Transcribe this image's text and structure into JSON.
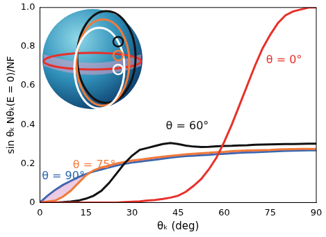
{
  "chart_data": {
    "type": "line",
    "x_label": "θₖ (deg)",
    "y_label": "sin θₖ Nθₖ(E = 0)/NF",
    "x": [
      0,
      2.5,
      5,
      7.5,
      10,
      12.5,
      15,
      17.5,
      20,
      22.5,
      25,
      27.5,
      30,
      32.5,
      35,
      37.5,
      40,
      42.5,
      45,
      47.5,
      50,
      52.5,
      55,
      57.5,
      60,
      62.5,
      65,
      67.5,
      70,
      72.5,
      75,
      77.5,
      80,
      82.5,
      85,
      87.5,
      90
    ],
    "series": [
      {
        "name": "θ = 0°",
        "color": "#e8302a",
        "values": [
          0,
          0,
          0,
          0,
          0,
          0,
          0,
          0,
          0,
          0,
          0,
          0.002,
          0.004,
          0.006,
          0.01,
          0.013,
          0.018,
          0.025,
          0.035,
          0.055,
          0.085,
          0.12,
          0.17,
          0.23,
          0.31,
          0.4,
          0.5,
          0.6,
          0.7,
          0.79,
          0.86,
          0.92,
          0.96,
          0.98,
          0.99,
          1.0,
          1.0
        ]
      },
      {
        "name": "θ = 60°",
        "color": "#111111",
        "values": [
          0,
          0,
          0,
          0.002,
          0.005,
          0.01,
          0.02,
          0.035,
          0.06,
          0.1,
          0.15,
          0.2,
          0.24,
          0.27,
          0.28,
          0.29,
          0.3,
          0.305,
          0.3,
          0.292,
          0.287,
          0.285,
          0.286,
          0.288,
          0.29,
          0.291,
          0.293,
          0.294,
          0.296,
          0.297,
          0.298,
          0.299,
          0.3,
          0.3,
          0.301,
          0.302,
          0.302
        ]
      },
      {
        "name": "θ = 75°",
        "color": "#f07b3a",
        "values": [
          0,
          0.005,
          0.01,
          0.03,
          0.06,
          0.1,
          0.14,
          0.165,
          0.18,
          0.19,
          0.2,
          0.208,
          0.215,
          0.22,
          0.225,
          0.23,
          0.235,
          0.239,
          0.243,
          0.247,
          0.25,
          0.253,
          0.255,
          0.258,
          0.26,
          0.263,
          0.265,
          0.267,
          0.268,
          0.269,
          0.27,
          0.272,
          0.273,
          0.274,
          0.275,
          0.275,
          0.275
        ]
      },
      {
        "name": "θ = 90°",
        "color": "#2a64ad",
        "values": [
          0,
          0.035,
          0.065,
          0.09,
          0.11,
          0.13,
          0.145,
          0.16,
          0.17,
          0.18,
          0.19,
          0.198,
          0.205,
          0.21,
          0.215,
          0.22,
          0.225,
          0.23,
          0.235,
          0.238,
          0.24,
          0.243,
          0.245,
          0.248,
          0.25,
          0.253,
          0.255,
          0.257,
          0.258,
          0.26,
          0.262,
          0.263,
          0.265,
          0.266,
          0.267,
          0.268,
          0.268
        ]
      }
    ],
    "annotations": [
      {
        "text": "θ = 0°",
        "x": 79.5,
        "y": 0.73
      },
      {
        "text": "θ = 60°",
        "x": 48,
        "y": 0.39
      },
      {
        "text": "θ = 75°",
        "x": 17.7,
        "y": 0.19
      },
      {
        "text": "θ = 90°",
        "x": 7.6,
        "y": 0.135
      }
    ],
    "xlim": [
      0,
      90
    ],
    "xticks": [
      0,
      15,
      30,
      45,
      60,
      75,
      90
    ],
    "ylim": [
      0,
      1
    ],
    "yticks": [
      0,
      {
        "value": 0.2,
        "label": "0.2"
      },
      {
        "value": 0.4,
        "label": "0.4"
      },
      {
        "value": 0.6,
        "label": "0.6"
      },
      {
        "value": 0.8,
        "label": "0.8"
      },
      {
        "value": 1,
        "label": "1.0"
      }
    ],
    "grid": false
  }
}
